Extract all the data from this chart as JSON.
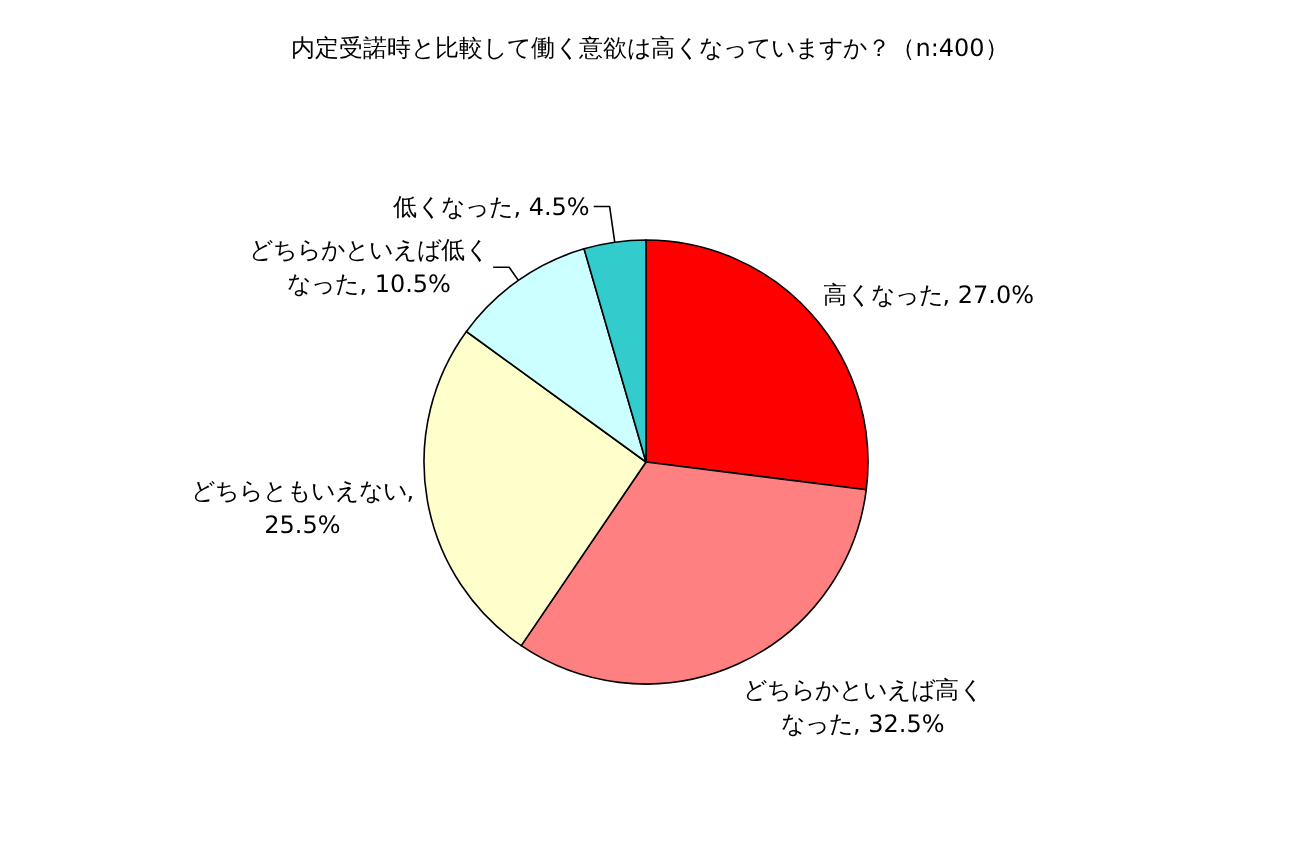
{
  "chart_data": {
    "type": "pie",
    "title": "内定受諾時と比較して働く意欲は高くなっていますか？（n:400）",
    "categories": [
      "高くなった",
      "どちらかといえば高くなった",
      "どちらともいえない",
      "どちらかといえば低くなった",
      "低くなった"
    ],
    "values": [
      27.0,
      32.5,
      25.5,
      10.5,
      4.5
    ],
    "colors": [
      "#ff0000",
      "#ff8080",
      "#ffffcc",
      "#ccffff",
      "#33cccc"
    ],
    "value_labels": [
      ", 27.0%",
      ", 32.5%",
      ", 25.5%",
      ", 10.5%",
      ", 4.5%"
    ]
  }
}
